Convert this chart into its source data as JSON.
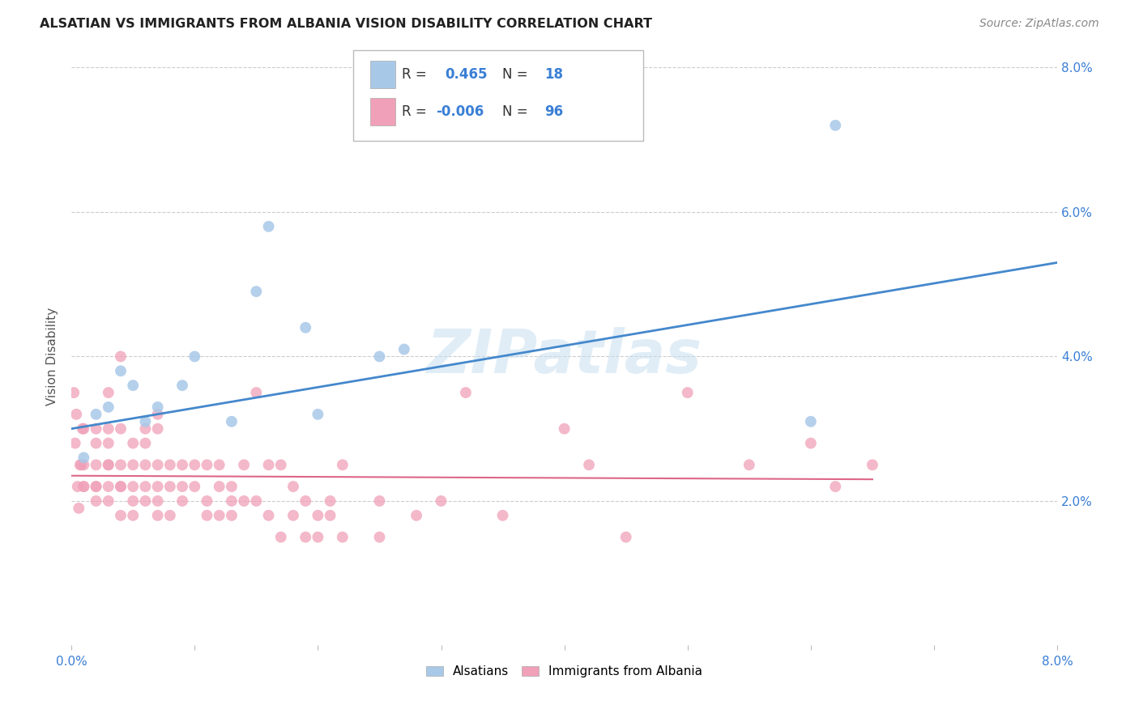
{
  "title": "ALSATIAN VS IMMIGRANTS FROM ALBANIA VISION DISABILITY CORRELATION CHART",
  "source": "Source: ZipAtlas.com",
  "ylabel": "Vision Disability",
  "xlim": [
    0.0,
    0.08
  ],
  "ylim": [
    0.0,
    0.08
  ],
  "color_blue": "#A8C8E8",
  "color_pink": "#F0A0B8",
  "color_blue_line": "#4488CC",
  "color_pink_line": "#DD6688",
  "watermark": "ZIPatlas",
  "blue_points": [
    [
      0.001,
      0.026
    ],
    [
      0.002,
      0.032
    ],
    [
      0.003,
      0.033
    ],
    [
      0.004,
      0.038
    ],
    [
      0.005,
      0.036
    ],
    [
      0.006,
      0.031
    ],
    [
      0.007,
      0.033
    ],
    [
      0.009,
      0.036
    ],
    [
      0.01,
      0.04
    ],
    [
      0.013,
      0.031
    ],
    [
      0.015,
      0.049
    ],
    [
      0.016,
      0.058
    ],
    [
      0.019,
      0.044
    ],
    [
      0.02,
      0.032
    ],
    [
      0.025,
      0.04
    ],
    [
      0.027,
      0.041
    ],
    [
      0.06,
      0.031
    ],
    [
      0.062,
      0.072
    ]
  ],
  "pink_points": [
    [
      0.0002,
      0.035
    ],
    [
      0.0003,
      0.028
    ],
    [
      0.0004,
      0.032
    ],
    [
      0.0005,
      0.022
    ],
    [
      0.0006,
      0.019
    ],
    [
      0.0007,
      0.025
    ],
    [
      0.0008,
      0.025
    ],
    [
      0.0009,
      0.03
    ],
    [
      0.001,
      0.022
    ],
    [
      0.001,
      0.03
    ],
    [
      0.001,
      0.022
    ],
    [
      0.001,
      0.025
    ],
    [
      0.002,
      0.022
    ],
    [
      0.002,
      0.03
    ],
    [
      0.002,
      0.025
    ],
    [
      0.002,
      0.028
    ],
    [
      0.002,
      0.02
    ],
    [
      0.002,
      0.022
    ],
    [
      0.003,
      0.022
    ],
    [
      0.003,
      0.025
    ],
    [
      0.003,
      0.02
    ],
    [
      0.003,
      0.03
    ],
    [
      0.003,
      0.028
    ],
    [
      0.003,
      0.035
    ],
    [
      0.003,
      0.025
    ],
    [
      0.004,
      0.04
    ],
    [
      0.004,
      0.025
    ],
    [
      0.004,
      0.022
    ],
    [
      0.004,
      0.03
    ],
    [
      0.004,
      0.022
    ],
    [
      0.004,
      0.018
    ],
    [
      0.005,
      0.025
    ],
    [
      0.005,
      0.028
    ],
    [
      0.005,
      0.022
    ],
    [
      0.005,
      0.018
    ],
    [
      0.005,
      0.02
    ],
    [
      0.006,
      0.03
    ],
    [
      0.006,
      0.025
    ],
    [
      0.006,
      0.022
    ],
    [
      0.006,
      0.02
    ],
    [
      0.006,
      0.028
    ],
    [
      0.007,
      0.022
    ],
    [
      0.007,
      0.025
    ],
    [
      0.007,
      0.02
    ],
    [
      0.007,
      0.03
    ],
    [
      0.007,
      0.018
    ],
    [
      0.007,
      0.032
    ],
    [
      0.008,
      0.025
    ],
    [
      0.008,
      0.022
    ],
    [
      0.008,
      0.018
    ],
    [
      0.009,
      0.022
    ],
    [
      0.009,
      0.025
    ],
    [
      0.009,
      0.02
    ],
    [
      0.01,
      0.025
    ],
    [
      0.01,
      0.022
    ],
    [
      0.011,
      0.02
    ],
    [
      0.011,
      0.025
    ],
    [
      0.011,
      0.018
    ],
    [
      0.012,
      0.025
    ],
    [
      0.012,
      0.022
    ],
    [
      0.012,
      0.018
    ],
    [
      0.013,
      0.02
    ],
    [
      0.013,
      0.022
    ],
    [
      0.013,
      0.018
    ],
    [
      0.014,
      0.025
    ],
    [
      0.014,
      0.02
    ],
    [
      0.015,
      0.035
    ],
    [
      0.015,
      0.02
    ],
    [
      0.016,
      0.025
    ],
    [
      0.016,
      0.018
    ],
    [
      0.017,
      0.025
    ],
    [
      0.017,
      0.015
    ],
    [
      0.018,
      0.022
    ],
    [
      0.018,
      0.018
    ],
    [
      0.019,
      0.02
    ],
    [
      0.019,
      0.015
    ],
    [
      0.02,
      0.018
    ],
    [
      0.02,
      0.015
    ],
    [
      0.021,
      0.02
    ],
    [
      0.021,
      0.018
    ],
    [
      0.022,
      0.025
    ],
    [
      0.022,
      0.015
    ],
    [
      0.025,
      0.02
    ],
    [
      0.025,
      0.015
    ],
    [
      0.028,
      0.018
    ],
    [
      0.03,
      0.02
    ],
    [
      0.032,
      0.035
    ],
    [
      0.035,
      0.018
    ],
    [
      0.04,
      0.03
    ],
    [
      0.042,
      0.025
    ],
    [
      0.045,
      0.015
    ],
    [
      0.05,
      0.035
    ],
    [
      0.055,
      0.025
    ],
    [
      0.06,
      0.028
    ],
    [
      0.062,
      0.022
    ],
    [
      0.065,
      0.025
    ]
  ],
  "blue_line_x": [
    0.0,
    0.08
  ],
  "blue_line_y": [
    0.03,
    0.053
  ],
  "pink_line_x": [
    0.0,
    0.065
  ],
  "pink_line_y": [
    0.0235,
    0.023
  ]
}
